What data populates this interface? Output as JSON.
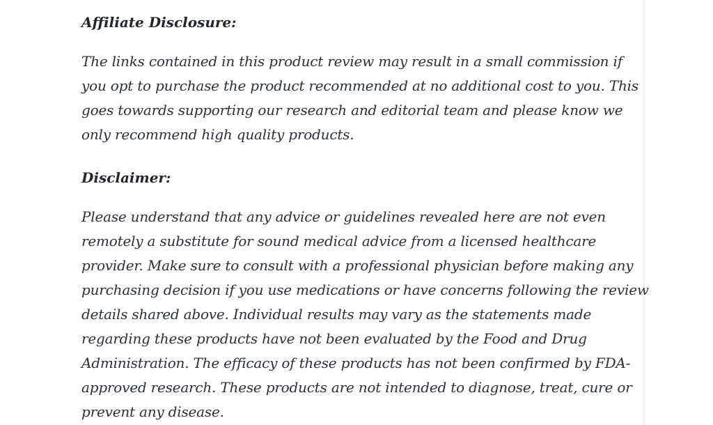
{
  "page": {
    "background": "#ffffff",
    "text_color": "#2b3138",
    "heading_color": "#22272d",
    "container_border_color": "#eaeaea"
  },
  "content": {
    "affiliate": {
      "heading": "Affiliate Disclosure:",
      "text": "The links contained in this product review may result in a small commission if you opt to purchase the product recommended at no additional cost to you. This goes towards supporting our research and editorial team and please know we only recommend high quality products.",
      "lines": [
        "The links contained in this product review may result in a small commission if",
        "you opt to purchase the product recommended at no additional cost to you. This",
        "goes towards supporting our research and editorial team and please know we",
        "only recommend high quality products."
      ]
    },
    "disclaimer": {
      "heading": "Disclaimer:",
      "text": "Please understand that any advice or guidelines revealed here are not even remotely a substitute for sound medical advice from a licensed healthcare provider. Make sure to consult with a professional physician before making any purchasing decision if you use medications or have concerns following the review details shared above. Individual results may vary as the statements made regarding these products have not been evaluated by the Food and Drug Administration. The efficacy of these products has not been confirmed by FDA-approved research. These products are not intended to diagnose, treat, cure or prevent any disease.",
      "lines": [
        "Please understand that any advice or guidelines revealed here are not even",
        "remotely a substitute for sound medical advice from a licensed healthcare",
        "provider. Make sure to consult with a professional physician before making any",
        "purchasing decision if you use medications or have concerns following the review",
        "details shared above. Individual results may vary as the statements made",
        "regarding these products have not been evaluated by the Food and Drug",
        "Administration. The efficacy of these products has not been confirmed by FDA-",
        "approved research. These products are not intended to diagnose, treat, cure or",
        "prevent any disease."
      ]
    }
  }
}
